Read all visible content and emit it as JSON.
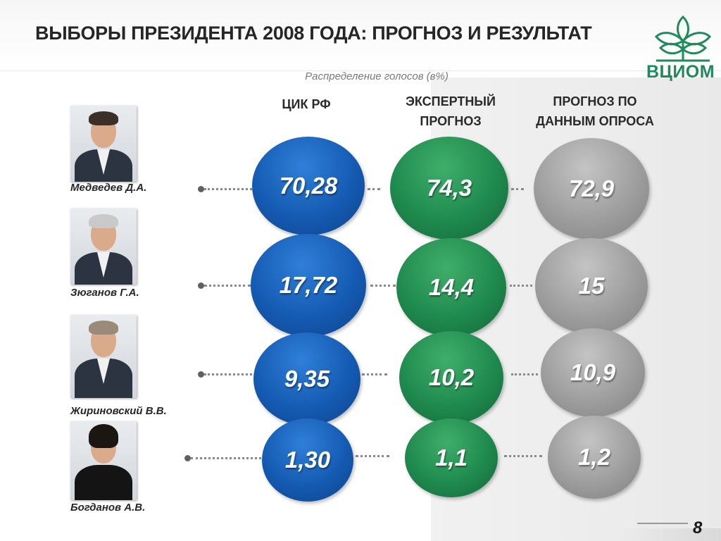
{
  "title": "ВЫБОРЫ ПРЕЗИДЕНТА 2008 ГОДА: ПРОГНОЗ И РЕЗУЛЬТАТ",
  "logo_text": "ВЦИОМ",
  "page_number": "8",
  "colors": {
    "cik": "#155bb3",
    "expert": "#1f8a4e",
    "survey": "#9e9e9e",
    "logo": "#1f8a5a"
  },
  "chart_data": {
    "type": "table",
    "subtitle": "Распределение голосов (в%)",
    "columns": [
      {
        "key": "cik",
        "label_line1": "ЦИК РФ",
        "label_line2": ""
      },
      {
        "key": "expert",
        "label_line1": "ЭКСПЕРТНЫЙ",
        "label_line2": "ПРОГНОЗ"
      },
      {
        "key": "survey",
        "label_line1": "ПРОГНОЗ ПО",
        "label_line2": "ДАННЫМ ОПРОСА"
      }
    ],
    "rows": [
      {
        "candidate": "Медведев Д.А.",
        "cik": "70,28",
        "expert": "74,3",
        "survey": "72,9"
      },
      {
        "candidate": "Зюганов Г.А.",
        "cik": "17,72",
        "expert": "14,4",
        "survey": "15"
      },
      {
        "candidate": "Жириновский В.В.",
        "cik": "9,35",
        "expert": "10,2",
        "survey": "10,9"
      },
      {
        "candidate": "Богданов А.В.",
        "cik": "1,30",
        "expert": "1,1",
        "survey": "1,2"
      }
    ]
  }
}
